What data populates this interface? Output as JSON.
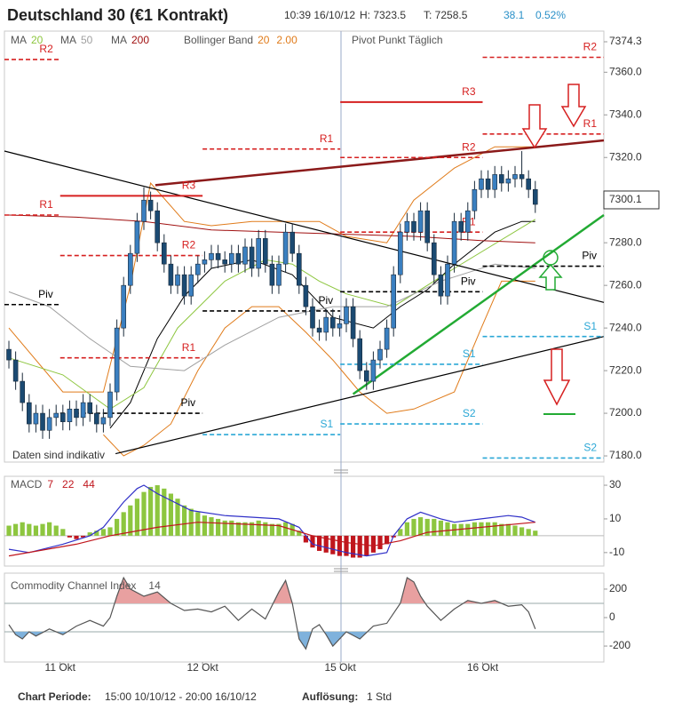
{
  "header": {
    "title": "Deutschland 30 (€1 Kontrakt)",
    "time": "10:39 16/10/12",
    "high": "H: 7323.5",
    "low": "T: 7258.5",
    "change": "38.1",
    "change_pct": "0.52%"
  },
  "chart_data": [
    {
      "type": "candlestick",
      "note": "Daten sind indikativ",
      "xlim": [
        -0.66,
        88.16
      ],
      "ylim": [
        7177.1,
        7379.3
      ],
      "yticks": [
        7374.3,
        {
          "value": 7360,
          "label": "7360.0"
        },
        {
          "value": 7340,
          "label": "7340.0"
        },
        {
          "value": 7320,
          "label": "7320.0"
        },
        {
          "value": 7280,
          "label": "7280.0"
        },
        {
          "value": 7260,
          "label": "7260.0"
        },
        {
          "value": 7240,
          "label": "7240.0"
        },
        {
          "value": 7220,
          "label": "7220.0"
        },
        {
          "value": 7200,
          "label": "7200.0"
        },
        {
          "value": 7180,
          "label": "7180.0"
        }
      ],
      "last_price": 7300.1,
      "colors": {
        "up": "#3a7fc0",
        "down": "#1b4a72"
      },
      "open": [
        7230,
        7225,
        7215,
        7205,
        7195,
        7200,
        7192,
        7198,
        7200,
        7196,
        7202,
        7198,
        7205,
        7200,
        7195,
        7198,
        7210,
        7240,
        7260,
        7275,
        7290,
        7300,
        7295,
        7280,
        7270,
        7260,
        7265,
        7255,
        7265,
        7270,
        7272,
        7275,
        7272,
        7270,
        7275,
        7270,
        7278,
        7268,
        7282,
        7270,
        7260,
        7270,
        7285,
        7275,
        7260,
        7250,
        7240,
        7238,
        7245,
        7240,
        7242,
        7250,
        7235,
        7220,
        7215,
        7225,
        7230,
        7240,
        7265,
        7285,
        7290,
        7285,
        7295,
        7280,
        7265,
        7255,
        7270,
        7290,
        7285,
        7295,
        7305,
        7310,
        7305,
        7312,
        7308,
        7310,
        7312,
        7310,
        7305
      ],
      "high": [
        7234,
        7229,
        7219,
        7209,
        7204,
        7204,
        7202,
        7204,
        7204,
        7206,
        7206,
        7209,
        7209,
        7204,
        7202,
        7214,
        7244,
        7264,
        7279,
        7294,
        7306,
        7304,
        7299,
        7284,
        7274,
        7269,
        7269,
        7269,
        7274,
        7276,
        7279,
        7279,
        7276,
        7279,
        7279,
        7282,
        7282,
        7286,
        7286,
        7274,
        7274,
        7289,
        7289,
        7279,
        7264,
        7254,
        7244,
        7249,
        7249,
        7246,
        7254,
        7254,
        7239,
        7224,
        7229,
        7234,
        7244,
        7269,
        7289,
        7294,
        7294,
        7299,
        7299,
        7284,
        7269,
        7274,
        7294,
        7294,
        7299,
        7309,
        7314,
        7314,
        7316,
        7316,
        7314,
        7316,
        7323,
        7314,
        7309
      ],
      "low": [
        7221,
        7211,
        7201,
        7191,
        7191,
        7188,
        7188,
        7194,
        7192,
        7192,
        7194,
        7194,
        7196,
        7191,
        7191,
        7194,
        7206,
        7236,
        7256,
        7271,
        7286,
        7291,
        7276,
        7266,
        7256,
        7256,
        7251,
        7251,
        7261,
        7266,
        7268,
        7268,
        7266,
        7266,
        7266,
        7266,
        7264,
        7264,
        7266,
        7256,
        7256,
        7266,
        7271,
        7256,
        7246,
        7236,
        7234,
        7234,
        7236,
        7236,
        7238,
        7231,
        7216,
        7211,
        7211,
        7221,
        7226,
        7236,
        7261,
        7281,
        7281,
        7281,
        7276,
        7261,
        7251,
        7251,
        7266,
        7281,
        7281,
        7291,
        7301,
        7301,
        7301,
        7304,
        7304,
        7306,
        7306,
        7301,
        7294
      ],
      "close": [
        7225,
        7215,
        7205,
        7195,
        7200,
        7192,
        7198,
        7200,
        7196,
        7202,
        7198,
        7205,
        7200,
        7195,
        7198,
        7210,
        7240,
        7260,
        7275,
        7290,
        7300,
        7295,
        7280,
        7270,
        7260,
        7265,
        7255,
        7265,
        7270,
        7272,
        7275,
        7272,
        7270,
        7275,
        7270,
        7278,
        7268,
        7282,
        7270,
        7260,
        7270,
        7285,
        7275,
        7260,
        7250,
        7240,
        7238,
        7245,
        7240,
        7242,
        7250,
        7235,
        7220,
        7215,
        7225,
        7230,
        7240,
        7265,
        7285,
        7290,
        7285,
        7295,
        7280,
        7265,
        7255,
        7270,
        7290,
        7285,
        7295,
        7305,
        7310,
        7305,
        7312,
        7308,
        7310,
        7312,
        7310,
        7305,
        7298
      ],
      "series": [
        {
          "name": "MA",
          "period": 20,
          "color": "#8dc63f",
          "x": [
            0,
            8,
            15,
            20,
            25,
            32,
            38,
            42,
            46,
            50,
            57,
            66,
            78
          ],
          "values": [
            7226,
            7218,
            7202,
            7212,
            7240,
            7262,
            7272,
            7270,
            7262,
            7256,
            7250,
            7268,
            7291
          ]
        },
        {
          "name": "MA",
          "period": 50,
          "color": "#a0a0a0",
          "x": [
            0,
            6,
            12,
            18,
            26,
            32,
            40,
            48,
            56,
            64,
            72,
            78
          ],
          "values": [
            7257,
            7250,
            7235,
            7222,
            7220,
            7232,
            7245,
            7250,
            7250,
            7262,
            7270,
            7268
          ]
        },
        {
          "name": "MA",
          "period": 200,
          "color": "#a01010",
          "x": [
            0,
            10,
            20,
            30,
            40,
            50,
            60,
            70,
            78
          ],
          "values": [
            7293,
            7292,
            7290,
            7286,
            7285,
            7284,
            7283,
            7281,
            7280
          ]
        }
      ],
      "bollinger": {
        "name": "Bollinger Band",
        "period": 20,
        "width": "2.00",
        "color": "#e07b1a",
        "middle": {
          "color": "#000000",
          "x": [
            15,
            18,
            22,
            26,
            30,
            36,
            42,
            48,
            54,
            58,
            62,
            66,
            72,
            76,
            78
          ],
          "values": [
            7193,
            7205,
            7235,
            7255,
            7268,
            7272,
            7265,
            7245,
            7240,
            7250,
            7258,
            7270,
            7285,
            7290,
            7290
          ]
        },
        "upper": {
          "x": [
            0,
            8,
            14,
            18,
            21,
            26,
            30,
            36,
            42,
            46,
            50,
            56,
            60,
            66,
            72,
            78
          ],
          "values": [
            7240,
            7210,
            7210,
            7260,
            7308,
            7290,
            7288,
            7290,
            7290,
            7290,
            7283,
            7280,
            7300,
            7315,
            7325,
            7325
          ]
        },
        "lower": {
          "x": [
            14,
            17,
            20,
            24,
            28,
            32,
            36,
            40,
            44,
            48,
            52,
            56,
            60,
            66,
            70,
            73,
            78
          ],
          "values": [
            7190,
            7180,
            7185,
            7195,
            7220,
            7240,
            7250,
            7250,
            7238,
            7225,
            7210,
            7200,
            7202,
            7210,
            7240,
            7262,
            7262
          ]
        }
      },
      "trendlines": [
        {
          "color": "#000000",
          "x": [
            -0.66,
            88.16
          ],
          "values": [
            7323,
            7252
          ]
        },
        {
          "color": "#000000",
          "x": [
            15.8,
            88.16
          ],
          "values": [
            7181,
            7236
          ]
        },
        {
          "color": "#8b1a1a",
          "x": [
            21.7,
            88.16
          ],
          "values": [
            7307,
            7328
          ]
        },
        {
          "color": "#22aa33",
          "x": [
            51,
            88.16
          ],
          "values": [
            7209,
            7293
          ]
        }
      ],
      "pivots": {
        "name": "Pivot Punkt Täglich",
        "levels": [
          {
            "label": "R2",
            "value": 7366,
            "from": -0.66,
            "to": 7.6,
            "color": "#d62020",
            "style": "dashed"
          },
          {
            "label": "R1",
            "value": 7293,
            "from": -0.66,
            "to": 7.6,
            "color": "#d62020",
            "style": "dashed"
          },
          {
            "label": "Piv",
            "value": 7251,
            "from": -0.66,
            "to": 7.6,
            "color": "#000000",
            "style": "dashed"
          },
          {
            "label": "R3",
            "value": 7302,
            "from": 7.6,
            "to": 28.7,
            "color": "#d62020",
            "style": "solid"
          },
          {
            "label": "R2",
            "value": 7274,
            "from": 7.6,
            "to": 28.7,
            "color": "#d62020",
            "style": "dashed"
          },
          {
            "label": "R1",
            "value": 7226,
            "from": 7.6,
            "to": 28.7,
            "color": "#d62020",
            "style": "dashed"
          },
          {
            "label": "Piv",
            "value": 7200,
            "from": 7.6,
            "to": 28.7,
            "color": "#000000",
            "style": "dashed"
          },
          {
            "label": "R1",
            "value": 7324,
            "from": 28.7,
            "to": 49.1,
            "color": "#d62020",
            "style": "dashed"
          },
          {
            "label": "Piv",
            "value": 7248,
            "from": 28.7,
            "to": 49.1,
            "color": "#000000",
            "style": "dashed"
          },
          {
            "label": "S1",
            "value": 7190,
            "from": 28.7,
            "to": 49.1,
            "color": "#2aa7d6",
            "style": "dashed"
          },
          {
            "label": "R3",
            "value": 7346,
            "from": 49.1,
            "to": 70.2,
            "color": "#d62020",
            "style": "solid"
          },
          {
            "label": "R2",
            "value": 7320,
            "from": 49.1,
            "to": 70.2,
            "color": "#d62020",
            "style": "dashed"
          },
          {
            "label": "R1",
            "value": 7285,
            "from": 49.1,
            "to": 70.2,
            "color": "#d62020",
            "style": "dashed"
          },
          {
            "label": "Piv",
            "value": 7257,
            "from": 49.1,
            "to": 70.2,
            "color": "#000000",
            "style": "dashed"
          },
          {
            "label": "S1",
            "value": 7223,
            "from": 49.1,
            "to": 70.2,
            "color": "#2aa7d6",
            "style": "dashed"
          },
          {
            "label": "S2",
            "value": 7195,
            "from": 49.1,
            "to": 70.2,
            "color": "#2aa7d6",
            "style": "dashed"
          },
          {
            "label": "R2",
            "value": 7367,
            "from": 70.2,
            "to": 88.16,
            "color": "#d62020",
            "style": "dashed"
          },
          {
            "label": "R1",
            "value": 7331,
            "from": 70.2,
            "to": 88.16,
            "color": "#d62020",
            "style": "dashed"
          },
          {
            "label": "Piv",
            "value": 7269,
            "from": 70.2,
            "to": 88.16,
            "color": "#000000",
            "style": "dashed"
          },
          {
            "label": "S1",
            "value": 7236,
            "from": 70.2,
            "to": 88.16,
            "color": "#2aa7d6",
            "style": "dashed"
          },
          {
            "label": "S2",
            "value": 7179,
            "from": 70.2,
            "to": 88.16,
            "color": "#2aa7d6",
            "style": "dashed"
          }
        ]
      }
    },
    {
      "type": "macd",
      "name": "MACD",
      "params": [
        7,
        22,
        44
      ],
      "xlim": [
        -0.66,
        88.16
      ],
      "ylim": [
        -18,
        35.3
      ],
      "yticks": [
        30,
        10,
        -10
      ],
      "colors": {
        "positive": "#8dc63f",
        "negative": "#c0161d"
      },
      "values": [
        6,
        7,
        8,
        7,
        6,
        7,
        8,
        6,
        4,
        -1,
        -2,
        -1,
        2,
        3,
        4,
        5,
        10,
        14,
        18,
        22,
        26,
        29,
        30,
        28,
        25,
        22,
        18,
        16,
        14,
        12,
        11,
        10,
        9,
        9,
        8,
        8,
        8,
        9,
        8,
        7,
        7,
        8,
        7,
        3,
        -4,
        -7,
        -9,
        -10,
        -11,
        -12,
        -12,
        -13,
        -13,
        -12,
        -10,
        -8,
        -5,
        -1,
        4,
        8,
        10,
        11,
        10,
        10,
        9,
        8,
        7,
        7,
        7,
        8,
        8,
        8,
        8,
        7,
        7,
        6,
        5,
        4,
        3
      ],
      "series": [
        {
          "color": "#3030c8",
          "x": [
            0,
            3,
            8,
            12,
            14,
            17,
            19,
            20,
            22,
            27,
            32,
            40,
            43,
            45,
            48,
            50,
            53,
            56,
            57,
            59,
            61,
            64,
            66,
            70,
            74,
            76,
            78
          ],
          "values": [
            -8,
            -10,
            -5,
            0,
            5,
            20,
            28,
            30,
            25,
            15,
            12,
            10,
            5,
            -5,
            -8,
            -10,
            -12,
            -10,
            0,
            10,
            14,
            10,
            8,
            10,
            12,
            11,
            8
          ]
        },
        {
          "color": "#c0161d",
          "x": [
            0,
            10,
            15,
            22,
            28,
            40,
            45,
            50,
            54,
            58,
            62,
            70,
            78
          ],
          "values": [
            -12,
            -5,
            0,
            5,
            8,
            6,
            0,
            -4,
            -6,
            -3,
            2,
            5,
            8
          ]
        }
      ]
    },
    {
      "type": "line",
      "name": "Commodity Channel Index",
      "period": 14,
      "xlim": [
        -0.66,
        88.16
      ],
      "ylim": [
        -312,
        312
      ],
      "yticks": [
        200,
        0,
        -200
      ],
      "reference_lines": [
        100,
        -100
      ],
      "colors": {
        "line": "#555555",
        "above": "#e8a0a0",
        "below": "#7fb2dc"
      },
      "xticks": [
        {
          "value": 7.6,
          "label": "11 Okt"
        },
        {
          "value": 28.7,
          "label": "12 Okt"
        },
        {
          "value": 49.1,
          "label": "15 Okt"
        },
        {
          "value": 70.2,
          "label": "16 Okt"
        }
      ],
      "x": [
        0,
        1,
        2,
        3,
        4,
        6,
        8,
        10,
        12,
        14,
        15,
        16,
        17,
        18,
        20,
        22,
        24,
        26,
        28,
        30,
        32,
        34,
        36,
        38,
        40,
        41,
        42,
        43,
        44,
        45,
        46,
        47,
        48,
        50,
        52,
        54,
        56,
        58,
        59,
        60,
        61,
        62,
        64,
        66,
        68,
        70,
        72,
        74,
        76,
        77,
        78
      ],
      "values": [
        -50,
        -120,
        -150,
        -100,
        -130,
        -80,
        -120,
        -60,
        -20,
        -60,
        0,
        150,
        280,
        200,
        150,
        180,
        100,
        50,
        60,
        40,
        80,
        -20,
        60,
        -10,
        180,
        260,
        100,
        -150,
        -220,
        -80,
        -50,
        -120,
        -200,
        -100,
        -150,
        -60,
        -40,
        100,
        280,
        250,
        150,
        80,
        -20,
        60,
        120,
        100,
        120,
        80,
        90,
        40,
        -80
      ]
    }
  ],
  "footer": {
    "period_label": "Chart Periode:",
    "period": "15:00 10/10/12 - 20:00 16/10/12",
    "resolution_label": "Auflösung:",
    "resolution": "1 Std"
  }
}
